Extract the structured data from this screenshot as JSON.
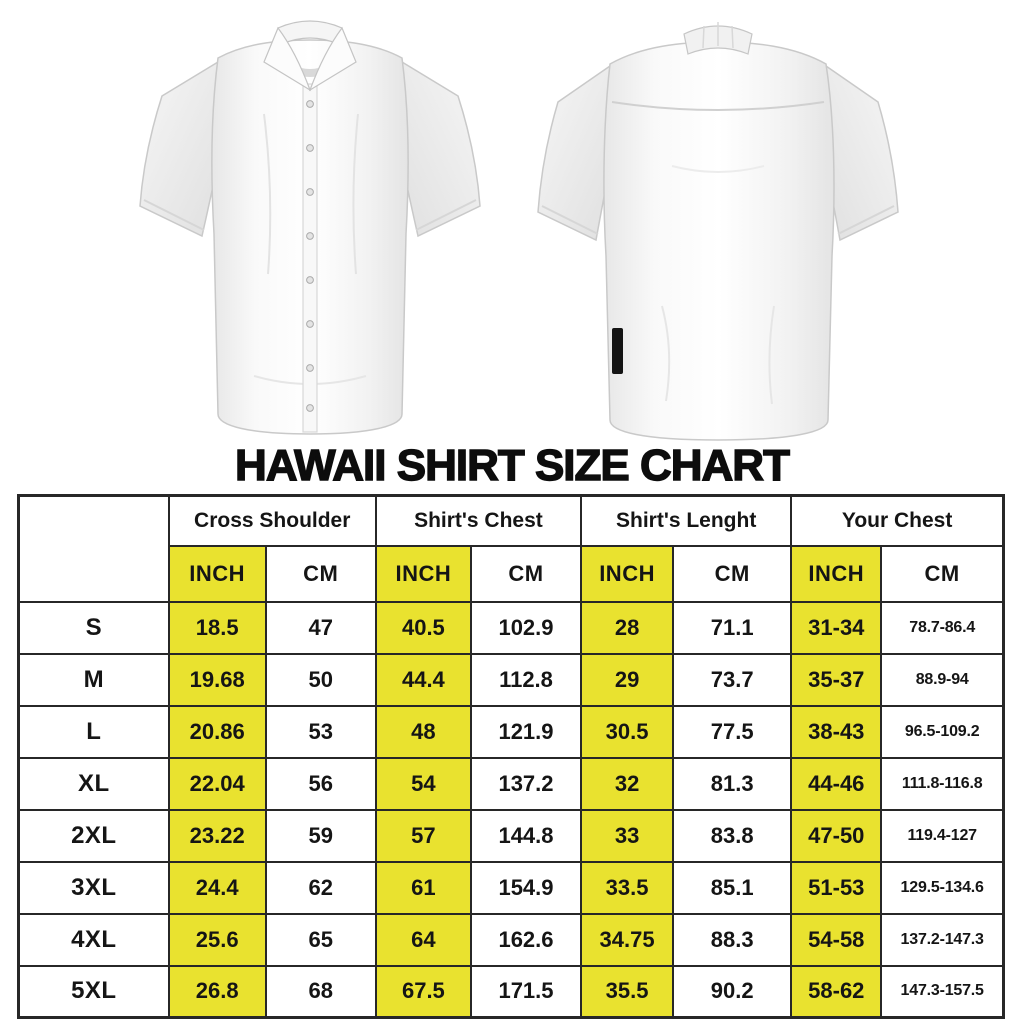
{
  "title": "HAWAII SHIRT SIZE CHART",
  "colors": {
    "highlight_yellow": "#e9e22f",
    "grid_border": "#272727",
    "title_text": "#0d0d0d",
    "background": "#ffffff"
  },
  "images": {
    "front": "white-short-sleeve-shirt-front",
    "back": "white-short-sleeve-shirt-back"
  },
  "table": {
    "group_headers": [
      "Cross Shoulder",
      "Shirt's Chest",
      "Shirt's Lenght",
      "Your Chest"
    ],
    "unit_headers": [
      "INCH",
      "CM"
    ],
    "rows": [
      {
        "size": "S",
        "cells": [
          "18.5",
          "47",
          "40.5",
          "102.9",
          "28",
          "71.1",
          "31-34",
          "78.7-86.4"
        ]
      },
      {
        "size": "M",
        "cells": [
          "19.68",
          "50",
          "44.4",
          "112.8",
          "29",
          "73.7",
          "35-37",
          "88.9-94"
        ]
      },
      {
        "size": "L",
        "cells": [
          "20.86",
          "53",
          "48",
          "121.9",
          "30.5",
          "77.5",
          "38-43",
          "96.5-109.2"
        ]
      },
      {
        "size": "XL",
        "cells": [
          "22.04",
          "56",
          "54",
          "137.2",
          "32",
          "81.3",
          "44-46",
          "111.8-116.8"
        ]
      },
      {
        "size": "2XL",
        "cells": [
          "23.22",
          "59",
          "57",
          "144.8",
          "33",
          "83.8",
          "47-50",
          "119.4-127"
        ]
      },
      {
        "size": "3XL",
        "cells": [
          "24.4",
          "62",
          "61",
          "154.9",
          "33.5",
          "85.1",
          "51-53",
          "129.5-134.6"
        ]
      },
      {
        "size": "4XL",
        "cells": [
          "25.6",
          "65",
          "64",
          "162.6",
          "34.75",
          "88.3",
          "54-58",
          "137.2-147.3"
        ]
      },
      {
        "size": "5XL",
        "cells": [
          "26.8",
          "68",
          "67.5",
          "171.5",
          "35.5",
          "90.2",
          "58-62",
          "147.3-157.5"
        ]
      }
    ]
  }
}
